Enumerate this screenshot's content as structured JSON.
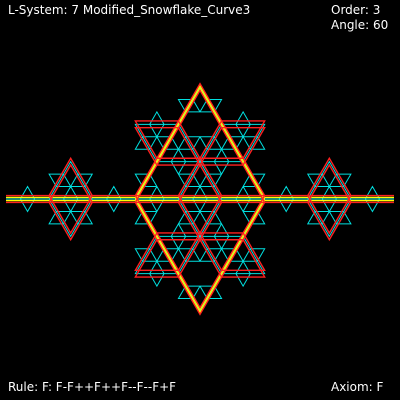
{
  "hud": {
    "title": "L-System: 7 Modified_Snowflake_Curve3",
    "order": "Order: 3",
    "angle": "Angle: 60",
    "rule": "Rule: F: F-F++F++F--F--F+F",
    "axiom": "Axiom: F"
  },
  "lsystem": {
    "axiom": "F",
    "rule_F": "F-F++F++F--F--F+F",
    "angle_deg": 60,
    "orders_drawn": [
      1,
      2,
      3
    ]
  },
  "colors": {
    "background": "#000000",
    "text": "#ffffff",
    "order1": "#ffff00",
    "order2": "#ff2020",
    "order3": "#00e0e0"
  }
}
